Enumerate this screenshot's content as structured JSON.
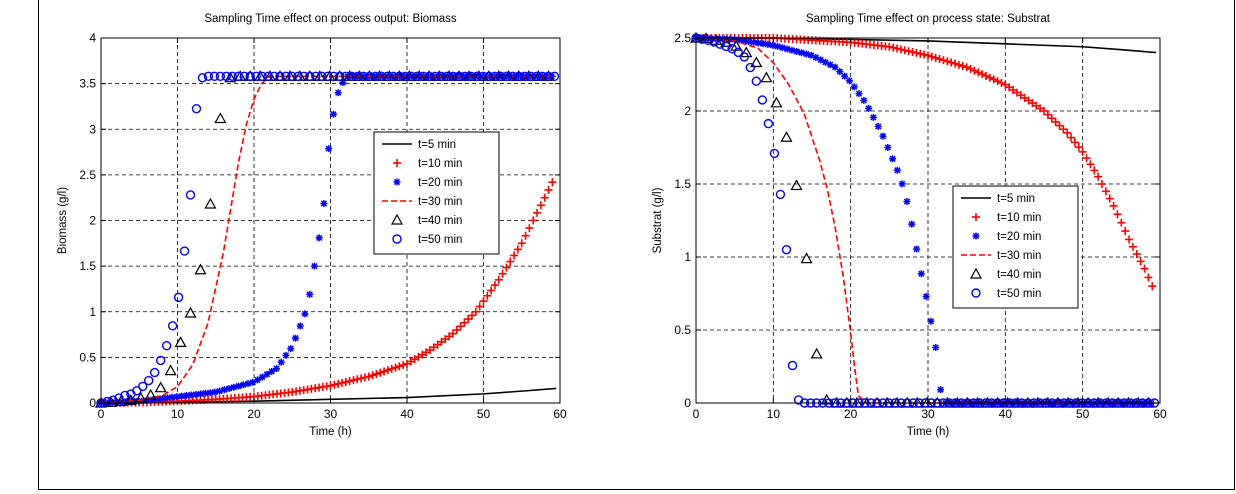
{
  "chart_data": [
    {
      "type": "scatter",
      "title": "Sampling Time effect on process output: Biomass",
      "xlabel": "Time (h)",
      "ylabel": "Biomass (g/l)",
      "xlim": [
        0,
        60
      ],
      "ylim": [
        0,
        4
      ],
      "xticks": [
        "0",
        "10",
        "20",
        "30",
        "40",
        "50",
        "60"
      ],
      "yticks": [
        "0",
        "0.5",
        "1",
        "1.5",
        "2",
        "2.5",
        "3",
        "3.5",
        "4"
      ],
      "grid": true,
      "legend_position": "right",
      "series": [
        {
          "name": "t=5 min",
          "style": "line",
          "color": "#000000",
          "x": [
            0,
            10,
            20,
            30,
            40,
            50,
            55,
            59.5
          ],
          "y": [
            0,
            0.01,
            0.02,
            0.04,
            0.06,
            0.1,
            0.13,
            0.16
          ]
        },
        {
          "name": "t=10 min",
          "style": "plus",
          "color": "#ff0000",
          "x": [
            0,
            5,
            10,
            15,
            20,
            25,
            30,
            35,
            40,
            43,
            46,
            49,
            52,
            55,
            58,
            59
          ],
          "y": [
            0,
            0.005,
            0.02,
            0.04,
            0.07,
            0.12,
            0.19,
            0.29,
            0.43,
            0.58,
            0.76,
            1.0,
            1.35,
            1.75,
            2.25,
            2.42
          ]
        },
        {
          "name": "t=20 min",
          "style": "asterisk",
          "color": "#0000ff",
          "x": [
            0,
            5,
            10,
            15,
            20,
            23,
            25,
            27,
            29,
            30,
            31,
            32,
            35,
            40,
            45,
            50,
            55,
            59.5
          ],
          "y": [
            0,
            0.02,
            0.07,
            0.12,
            0.23,
            0.38,
            0.62,
            1.05,
            2.05,
            3.02,
            3.4,
            3.58,
            3.58,
            3.58,
            3.58,
            3.58,
            3.58,
            3.58
          ]
        },
        {
          "name": "t=30 min",
          "style": "dashed",
          "color": "#ff0000",
          "x": [
            0,
            5,
            8,
            10,
            12,
            14,
            16,
            17,
            18,
            19,
            20,
            21,
            22,
            30,
            40,
            50,
            59.5
          ],
          "y": [
            0,
            0.03,
            0.08,
            0.18,
            0.42,
            0.88,
            1.65,
            2.15,
            2.65,
            3.05,
            3.33,
            3.5,
            3.58,
            3.58,
            3.58,
            3.58,
            3.58
          ]
        },
        {
          "name": "t=40 min",
          "style": "triangle",
          "color": "#000000",
          "x": [
            0,
            2,
            4,
            6,
            7.5,
            8,
            9,
            10,
            11,
            12,
            13,
            14,
            15,
            16,
            17,
            18,
            19,
            20,
            25,
            30,
            35,
            40,
            45,
            50,
            55,
            59.5
          ],
          "y": [
            0,
            0.01,
            0.03,
            0.07,
            0.12,
            0.2,
            0.33,
            0.58,
            0.79,
            1.07,
            1.46,
            1.98,
            2.65,
            3.43,
            3.58,
            3.58,
            3.58,
            3.58,
            3.58,
            3.58,
            3.58,
            3.58,
            3.58,
            3.58,
            3.58,
            3.58
          ]
        },
        {
          "name": "t=50 min",
          "style": "circle",
          "color": "#0000ff",
          "x": [
            0,
            1,
            2,
            3,
            4,
            5,
            6,
            7,
            8,
            9,
            10,
            10.8,
            11.7,
            12.5,
            13.3,
            14.2,
            15,
            16,
            18,
            20,
            25,
            30,
            35,
            40,
            45,
            50,
            55,
            59.5
          ],
          "y": [
            0,
            0.02,
            0.04,
            0.08,
            0.1,
            0.15,
            0.22,
            0.33,
            0.5,
            0.72,
            1.07,
            1.57,
            2.28,
            3.25,
            3.58,
            3.58,
            3.58,
            3.58,
            3.58,
            3.58,
            3.58,
            3.58,
            3.58,
            3.58,
            3.58,
            3.58,
            3.58,
            3.58
          ]
        }
      ]
    },
    {
      "type": "scatter",
      "title": "Sampling Time effect on process state: Substrat",
      "xlabel": "Time (h)",
      "ylabel": "Substrat (g/l)",
      "xlim": [
        0,
        60
      ],
      "ylim": [
        0,
        2.5
      ],
      "xticks": [
        "0",
        "10",
        "20",
        "30",
        "40",
        "50",
        "60"
      ],
      "yticks": [
        "0",
        "0.5",
        "1",
        "1.5",
        "2",
        "2.5"
      ],
      "grid": true,
      "legend_position": "center",
      "series": [
        {
          "name": "t=5 min",
          "style": "line",
          "color": "#000000",
          "x": [
            0,
            10,
            20,
            30,
            40,
            50,
            55,
            59.5
          ],
          "y": [
            2.5,
            2.5,
            2.49,
            2.48,
            2.46,
            2.44,
            2.42,
            2.4
          ]
        },
        {
          "name": "t=10 min",
          "style": "plus",
          "color": "#ff0000",
          "x": [
            0,
            10,
            20,
            25,
            30,
            35,
            40,
            45,
            48,
            50,
            52,
            54,
            56,
            58,
            59
          ],
          "y": [
            2.5,
            2.5,
            2.47,
            2.44,
            2.38,
            2.3,
            2.18,
            2.0,
            1.85,
            1.72,
            1.55,
            1.35,
            1.12,
            0.92,
            0.8
          ]
        },
        {
          "name": "t=20 min",
          "style": "asterisk",
          "color": "#0000ff",
          "x": [
            0,
            5,
            10,
            15,
            18,
            20,
            22,
            24,
            26,
            27,
            28,
            29,
            30,
            31,
            31.5,
            32,
            35,
            40,
            45,
            50,
            55,
            59.5
          ],
          "y": [
            2.5,
            2.49,
            2.45,
            2.38,
            2.3,
            2.2,
            2.05,
            1.85,
            1.6,
            1.45,
            1.2,
            0.92,
            0.67,
            0.38,
            0.12,
            0,
            0,
            0,
            0,
            0,
            0,
            0
          ]
        },
        {
          "name": "t=30 min",
          "style": "dashed",
          "color": "#ff0000",
          "x": [
            0,
            5,
            8,
            10,
            12,
            14,
            16,
            17,
            18,
            19,
            20,
            20.5,
            21,
            22,
            30,
            40,
            50,
            59.5
          ],
          "y": [
            2.5,
            2.48,
            2.43,
            2.33,
            2.18,
            1.98,
            1.66,
            1.46,
            1.2,
            0.88,
            0.48,
            0.25,
            0.05,
            0,
            0,
            0,
            0,
            0
          ]
        },
        {
          "name": "t=40 min",
          "style": "triangle",
          "color": "#000000",
          "x": [
            0,
            1,
            2,
            3,
            4,
            5,
            6,
            7,
            8,
            9,
            10,
            11,
            12,
            13,
            14,
            15,
            16,
            17,
            18,
            20,
            25,
            30,
            35,
            40,
            45,
            50,
            55,
            59.5
          ],
          "y": [
            2.5,
            2.5,
            2.49,
            2.48,
            2.47,
            2.45,
            2.42,
            2.38,
            2.32,
            2.24,
            2.12,
            1.96,
            1.76,
            1.49,
            1.13,
            0.66,
            0.12,
            0.01,
            0,
            0,
            0,
            0,
            0,
            0,
            0,
            0,
            0,
            0
          ]
        },
        {
          "name": "t=50 min",
          "style": "circle",
          "color": "#0000ff",
          "x": [
            0,
            1,
            2,
            3,
            4,
            5,
            6,
            6.5,
            7,
            8,
            9,
            10,
            11,
            12,
            12.5,
            13.3,
            14,
            15,
            17,
            20,
            25,
            30,
            35,
            40,
            45,
            50,
            55,
            59.5
          ],
          "y": [
            2.5,
            2.49,
            2.48,
            2.46,
            2.44,
            2.42,
            2.38,
            2.36,
            2.3,
            2.18,
            2.0,
            1.76,
            1.4,
            0.9,
            0.23,
            0.01,
            0,
            0,
            0,
            0,
            0,
            0,
            0,
            0,
            0,
            0,
            0,
            0
          ]
        }
      ]
    }
  ]
}
